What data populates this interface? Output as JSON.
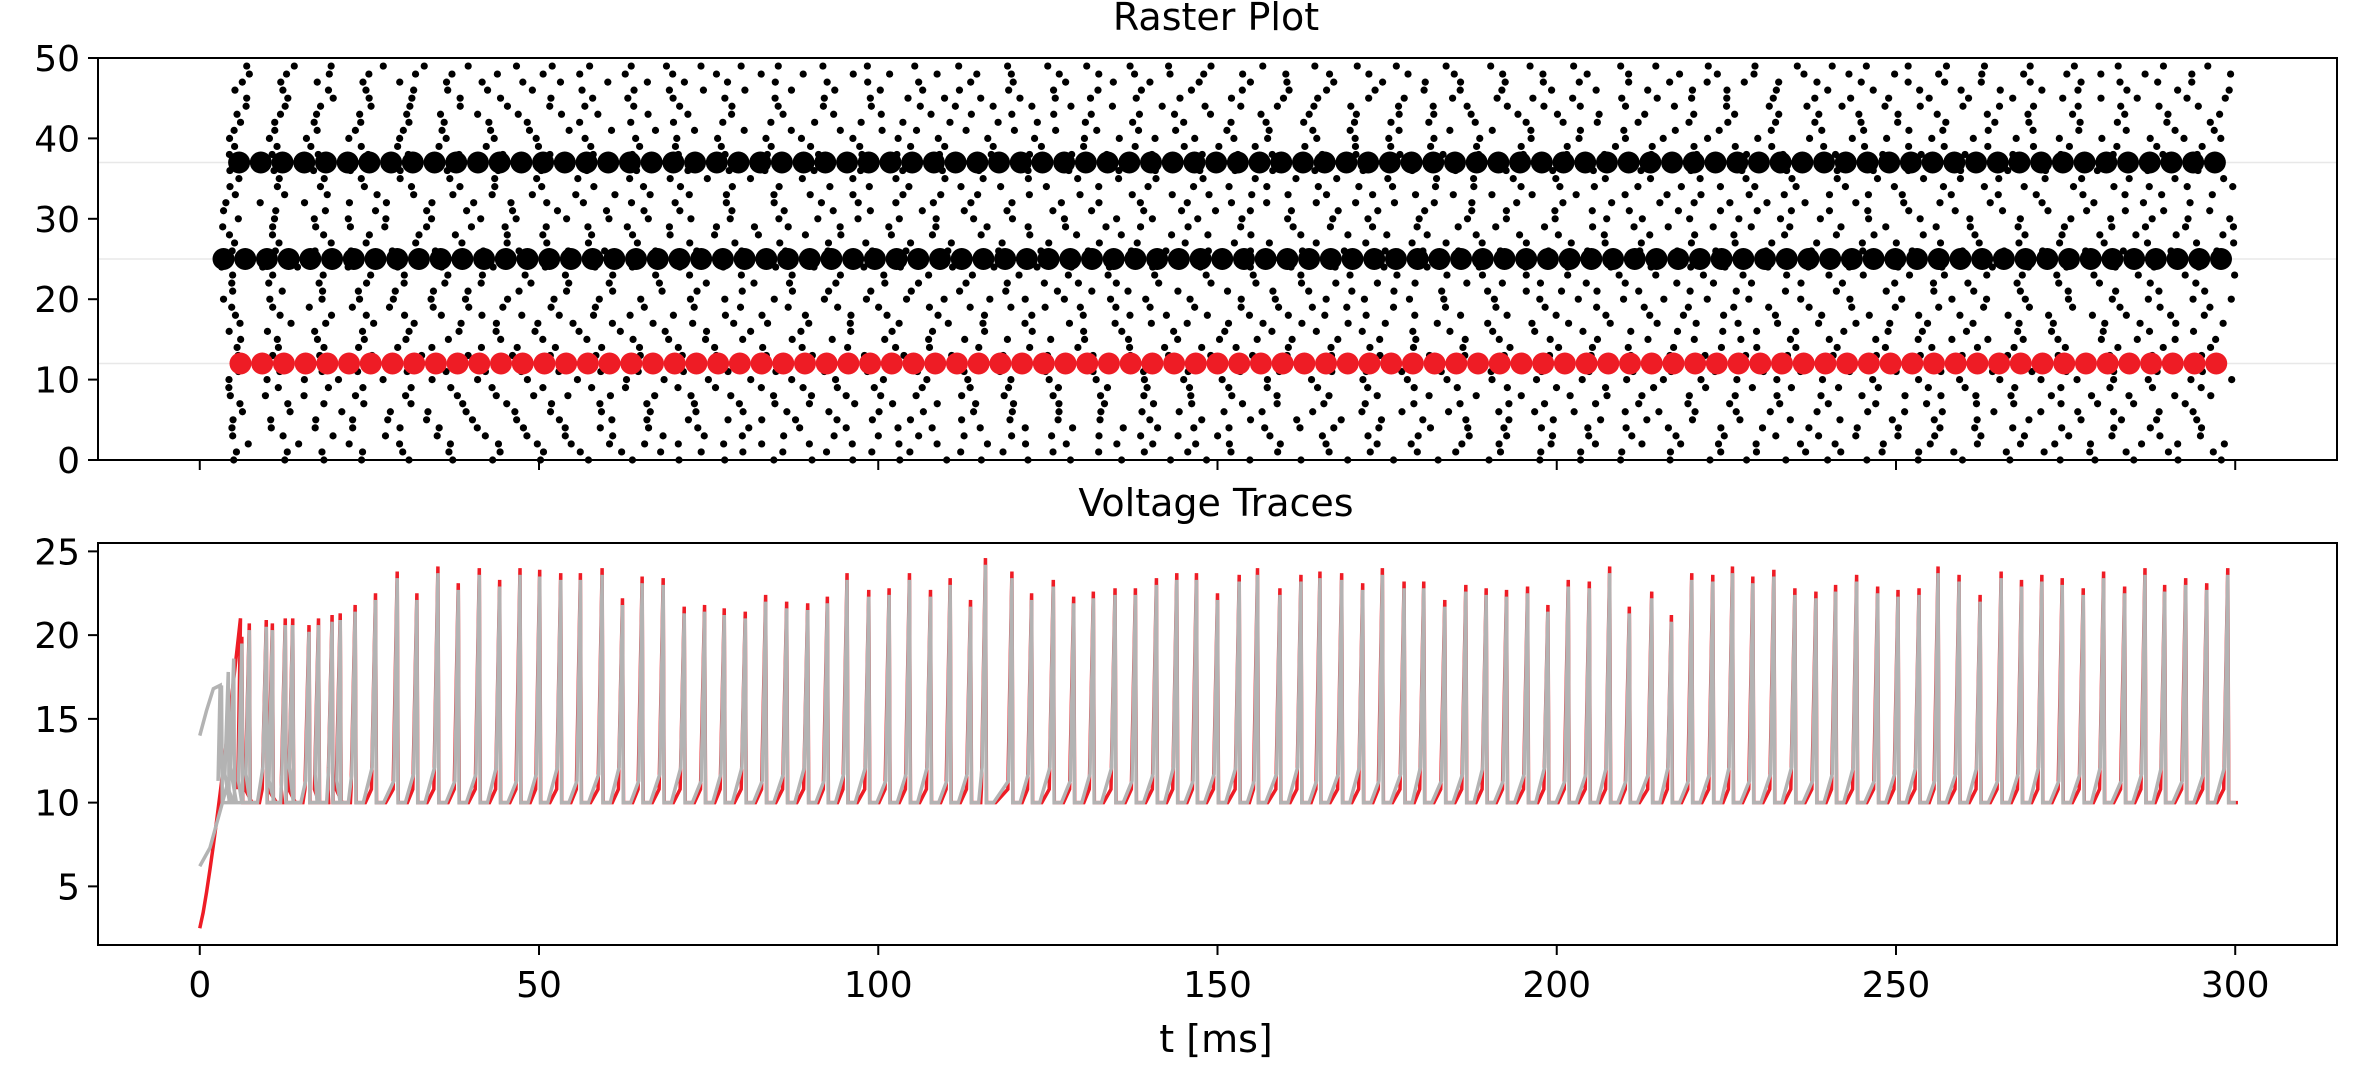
{
  "chart_data": [
    {
      "type": "scatter",
      "title": "Raster Plot",
      "xlabel": "",
      "ylabel": "",
      "xlim": [
        -15,
        315
      ],
      "ylim": [
        0,
        50
      ],
      "xticks": [
        0,
        50,
        100,
        150,
        200,
        250,
        300
      ],
      "show_xtick_labels": false,
      "yticks": [
        0,
        10,
        20,
        30,
        40,
        50
      ],
      "yticklabels": [
        "0",
        "10",
        "20",
        "30",
        "40",
        "50"
      ],
      "grid": false,
      "marker_color": "#000000",
      "highlight_color": "#ee1c25",
      "guide_line_color": "#e8e8e8",
      "background_spikes": {
        "neurons": [
          0,
          49
        ],
        "spike_start_ms": 3,
        "spike_end_ms": 300,
        "mean_interval_ms": 6.2,
        "marker": "small-dot"
      },
      "highlighted_neurons": [
        {
          "neuron": 37,
          "color": "#000000",
          "first_spike_ms": 5.8,
          "last_spike_ms": 300,
          "interval_ms": 3.2
        },
        {
          "neuron": 25,
          "color": "#000000",
          "first_spike_ms": 3.5,
          "last_spike_ms": 300,
          "interval_ms": 3.2
        },
        {
          "neuron": 12,
          "color": "#ee1c25",
          "first_spike_ms": 6.0,
          "last_spike_ms": 300,
          "interval_ms": 3.2
        }
      ]
    },
    {
      "type": "line",
      "title": "Voltage Traces",
      "xlabel": "t [ms]",
      "ylabel": "",
      "xlim": [
        -15,
        315
      ],
      "ylim": [
        1.5,
        25.5
      ],
      "xticks": [
        0,
        50,
        100,
        150,
        200,
        250,
        300
      ],
      "xticklabels": [
        "0",
        "50",
        "100",
        "150",
        "200",
        "250",
        "300"
      ],
      "yticks": [
        5,
        10,
        15,
        20,
        25
      ],
      "yticklabels": [
        "5",
        "10",
        "15",
        "20",
        "25"
      ],
      "grid": false,
      "series": [
        {
          "color": "#ee1c25",
          "start_value": 2.5,
          "rest_value": 10,
          "start_ms": 0,
          "end_ms": 300
        },
        {
          "color": "#b3b3b3",
          "rest_value": 10,
          "initial_values": [
            14,
            6.2
          ],
          "spike_times_ms": [
            3.2,
            4.2,
            5.0,
            6.2,
            7.3,
            9.8,
            10.7,
            12.6,
            13.7,
            16.1,
            17.5,
            19.5,
            20.7,
            22.9,
            25.9,
            29.1,
            32.0,
            35.1,
            38.1,
            41.2,
            44.2,
            47.2,
            50.1,
            53.2,
            56.1,
            59.3,
            62.3,
            65.2,
            68.3,
            71.4,
            74.4,
            77.3,
            80.4,
            83.4,
            86.5,
            89.6,
            92.5,
            95.4,
            98.6,
            101.6,
            104.6,
            107.7,
            110.6,
            113.6,
            115.8,
            119.7,
            122.6,
            125.8,
            128.8,
            131.7,
            134.9,
            137.9,
            141.0,
            144.0,
            146.9,
            150.0,
            153.2,
            155.9,
            159.2,
            162.3,
            165.1,
            168.3,
            171.4,
            174.3,
            177.5,
            180.4,
            183.5,
            186.6,
            189.6,
            192.6,
            195.7,
            198.7,
            201.7,
            204.8,
            207.8,
            210.7,
            214.0,
            216.9,
            219.9,
            223.0,
            225.9,
            228.9,
            232.0,
            235.1,
            238.2,
            241.1,
            244.2,
            247.3,
            250.3,
            253.4,
            256.2,
            259.3,
            262.4,
            265.5,
            268.5,
            271.5,
            274.5,
            277.6,
            280.6,
            283.7,
            286.7,
            289.6,
            292.7,
            295.8,
            298.9
          ],
          "spike_peaks": [
            17.0,
            17.8,
            18.6,
            19.5,
            20.3,
            20.5,
            20.3,
            20.6,
            20.6,
            20.2,
            20.6,
            20.8,
            20.9,
            21.4,
            22.1,
            23.4,
            22.1,
            23.7,
            22.7,
            23.6,
            22.9,
            23.6,
            23.5,
            23.3,
            23.3,
            23.6,
            21.8,
            23.1,
            23.0,
            21.3,
            21.4,
            21.2,
            21.0,
            22.0,
            21.6,
            21.5,
            21.9,
            23.3,
            22.3,
            22.4,
            23.3,
            22.3,
            23.0,
            21.7,
            24.2,
            23.4,
            22.1,
            22.9,
            21.9,
            22.2,
            22.4,
            22.4,
            23.0,
            23.3,
            23.3,
            22.1,
            23.2,
            23.6,
            22.4,
            23.2,
            23.4,
            23.3,
            22.7,
            23.6,
            22.8,
            22.8,
            21.7,
            22.6,
            22.4,
            22.3,
            22.5,
            21.4,
            22.9,
            22.8,
            23.7,
            21.3,
            22.2,
            20.8,
            23.3,
            23.2,
            23.7,
            23.1,
            23.5,
            22.4,
            22.2,
            22.6,
            23.2,
            22.5,
            22.3,
            22.4,
            23.7,
            23.2,
            22.0,
            23.4,
            22.9,
            23.2,
            23.0,
            22.4,
            23.4,
            22.5,
            23.6,
            22.6,
            23.0,
            22.7,
            23.6
          ]
        }
      ]
    }
  ]
}
